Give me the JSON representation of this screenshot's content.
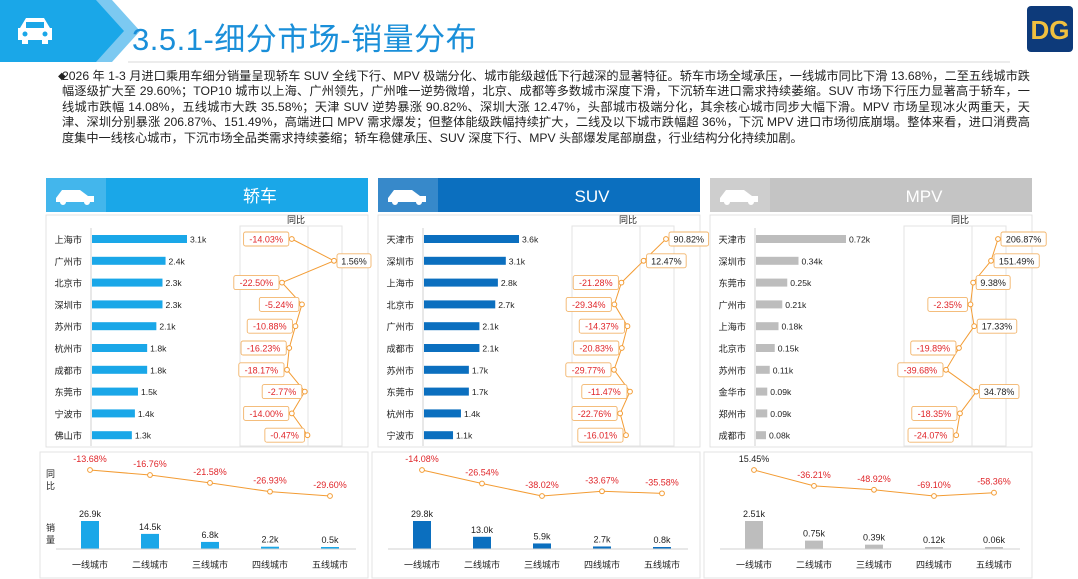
{
  "page_title": "3.5.1-细分市场-销量分布",
  "summary": "2026 年 1-3 月进口乘用车细分销量呈现轿车 SUV 全线下行、MPV 极端分化、城市能级越低下行越深的显著特征。轿车市场全域承压，一线城市同比下滑 13.68%，二至五线城市跌幅逐级扩大至 29.60%；TOP10 城市以上海、广州领先，广州唯一逆势微增，北京、成都等多数城市深度下滑，下沉轿车进口需求持续萎缩。SUV 市场下行压力显著高于轿车，一线城市跌幅 14.08%，五线城市大跌 35.58%；天津 SUV 逆势暴涨 90.82%、深圳大涨 12.47%，头部城市极端分化，其余核心城市同步大幅下滑。MPV 市场呈现冰火两重天，天津、深圳分别暴涨 206.87%、151.49%，高端进口 MPV 需求爆发；但整体能级跌幅持续扩大，二线及以下城市跌幅超 36%，下沉 MPV 进口市场彻底崩塌。整体来看，进口消费高度集中一线核心城市，下沉市场全品类需求持续萎缩；轿车稳健承压、SUV 深度下行、MPV 头部爆发尾部崩盘，行业结构分化持续加剧。",
  "labels": {
    "yoy": "同比",
    "yoy_side": "同比",
    "sales_side": "销量"
  },
  "colors": {
    "sedan": "#1aa7e8",
    "suv": "#0b6fbf",
    "mpv": "#b9b9b9",
    "line": "#f39c34",
    "neg": "#e0262a",
    "title": "#1a8fd9"
  },
  "icons": {
    "header": "car-icon",
    "logo": "dg-logo"
  },
  "chart_data": [
    {
      "type": "bar",
      "title": "轿车",
      "panel": "sedan",
      "categories": [
        "上海市",
        "广州市",
        "北京市",
        "深圳市",
        "苏州市",
        "杭州市",
        "成都市",
        "东莞市",
        "宁波市",
        "佛山市"
      ],
      "values": [
        3.1,
        2.4,
        2.3,
        2.3,
        2.1,
        1.8,
        1.8,
        1.5,
        1.4,
        1.3
      ],
      "value_labels": [
        "3.1k",
        "2.4k",
        "2.3k",
        "2.3k",
        "2.1k",
        "1.8k",
        "1.8k",
        "1.5k",
        "1.4k",
        "1.3k"
      ],
      "yoy": [
        -14.03,
        1.56,
        -22.5,
        -5.24,
        -10.88,
        -16.23,
        -18.17,
        -2.77,
        -14.0,
        -0.47
      ],
      "yoy_labels": [
        "-14.03%",
        "1.56%",
        "-22.50%",
        "-5.24%",
        "-10.88%",
        "-16.23%",
        "-18.17%",
        "-2.77%",
        "-14.00%",
        "-0.47%"
      ],
      "yoy_title": "同比"
    },
    {
      "type": "bar",
      "title": "SUV",
      "panel": "suv",
      "categories": [
        "天津市",
        "深圳市",
        "上海市",
        "北京市",
        "广州市",
        "成都市",
        "苏州市",
        "东莞市",
        "杭州市",
        "宁波市"
      ],
      "values": [
        3.6,
        3.1,
        2.8,
        2.7,
        2.1,
        2.1,
        1.7,
        1.7,
        1.4,
        1.1
      ],
      "value_labels": [
        "3.6k",
        "3.1k",
        "2.8k",
        "2.7k",
        "2.1k",
        "2.1k",
        "1.7k",
        "1.7k",
        "1.4k",
        "1.1k"
      ],
      "yoy": [
        90.82,
        12.47,
        -21.28,
        -29.34,
        -14.37,
        -20.83,
        -29.77,
        -11.47,
        -22.76,
        -16.01
      ],
      "yoy_labels": [
        "90.82%",
        "12.47%",
        "-21.28%",
        "-29.34%",
        "-14.37%",
        "-20.83%",
        "-29.77%",
        "-11.47%",
        "-22.76%",
        "-16.01%"
      ],
      "yoy_title": "同比"
    },
    {
      "type": "bar",
      "title": "MPV",
      "panel": "mpv",
      "categories": [
        "天津市",
        "深圳市",
        "东莞市",
        "广州市",
        "上海市",
        "北京市",
        "苏州市",
        "金华市",
        "郑州市",
        "成都市"
      ],
      "values": [
        0.72,
        0.34,
        0.25,
        0.21,
        0.18,
        0.15,
        0.11,
        0.09,
        0.09,
        0.08
      ],
      "value_labels": [
        "0.72k",
        "0.34k",
        "0.25k",
        "0.21k",
        "0.18k",
        "0.15k",
        "0.11k",
        "0.09k",
        "0.09k",
        "0.08k"
      ],
      "yoy": [
        206.87,
        151.49,
        9.38,
        -2.35,
        17.33,
        -19.89,
        -39.68,
        34.78,
        -18.35,
        -24.07
      ],
      "yoy_labels": [
        "206.87%",
        "151.49%",
        "9.38%",
        "-2.35%",
        "17.33%",
        "-19.89%",
        "-39.68%",
        "34.78%",
        "-18.35%",
        "-24.07%"
      ],
      "yoy_title": "同比"
    },
    {
      "type": "bar",
      "panel": "sedan-tier",
      "categories": [
        "一线城市",
        "二线城市",
        "三线城市",
        "四线城市",
        "五线城市"
      ],
      "values": [
        26.9,
        14.5,
        6.8,
        2.2,
        0.5
      ],
      "value_labels": [
        "26.9k",
        "14.5k",
        "6.8k",
        "2.2k",
        "0.5k"
      ],
      "yoy": [
        -13.68,
        -16.76,
        -21.58,
        -26.93,
        -29.6
      ],
      "yoy_labels": [
        "-13.68%",
        "-16.76%",
        "-21.58%",
        "-26.93%",
        "-29.60%"
      ]
    },
    {
      "type": "bar",
      "panel": "suv-tier",
      "categories": [
        "一线城市",
        "二线城市",
        "三线城市",
        "四线城市",
        "五线城市"
      ],
      "values": [
        29.8,
        13.0,
        5.9,
        2.7,
        0.8
      ],
      "value_labels": [
        "29.8k",
        "13.0k",
        "5.9k",
        "2.7k",
        "0.8k"
      ],
      "yoy": [
        -14.08,
        -26.54,
        -38.02,
        -33.67,
        -35.58
      ],
      "yoy_labels": [
        "-14.08%",
        "-26.54%",
        "-38.02%",
        "-33.67%",
        "-35.58%"
      ]
    },
    {
      "type": "bar",
      "panel": "mpv-tier",
      "categories": [
        "一线城市",
        "二线城市",
        "三线城市",
        "四线城市",
        "五线城市"
      ],
      "values": [
        2.51,
        0.75,
        0.39,
        0.12,
        0.06
      ],
      "value_labels": [
        "2.51k",
        "0.75k",
        "0.39k",
        "0.12k",
        "0.06k"
      ],
      "yoy": [
        15.45,
        -36.21,
        -48.92,
        -69.1,
        -58.36
      ],
      "yoy_labels": [
        "15.45%",
        "-36.21%",
        "-48.92%",
        "-69.10%",
        "-58.36%"
      ]
    }
  ]
}
